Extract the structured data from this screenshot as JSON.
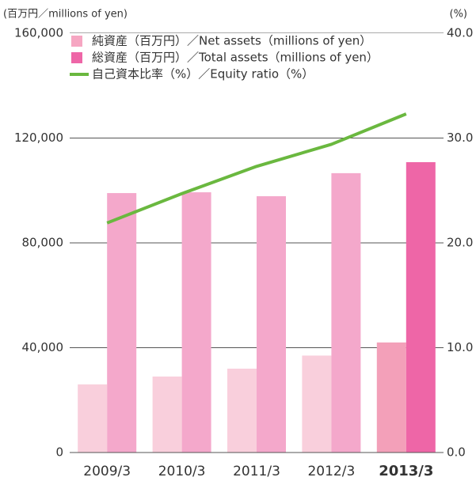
{
  "chart_data": {
    "type": "bar_line",
    "y_label": "(百万円／millions of yen)",
    "y2_label": "(%)",
    "categories": [
      "2009/3",
      "2010/3",
      "2011/3",
      "2012/3",
      "2013/3"
    ],
    "highlight_index": 4,
    "series": [
      {
        "name": "純資産（百万円）／Net assets（millions of yen）",
        "color": "#f6a6c2",
        "bar_colors": [
          "#f9cfdc",
          "#f9cfdc",
          "#f9cfdc",
          "#f9cfdc",
          "#f3a0b9"
        ],
        "values": [
          26000,
          29000,
          32000,
          37000,
          42000
        ]
      },
      {
        "name": "総資産（百万円）／Total assets（millions of yen）",
        "color": "#ee66a7",
        "bar_colors": [
          "#f4a8cb",
          "#f4a8cb",
          "#f4a8cb",
          "#f4a8cb",
          "#ee66a7"
        ],
        "values": [
          99000,
          99300,
          97800,
          106600,
          110800
        ]
      },
      {
        "name": "自己資本比率（%）／Equity ratio（%）",
        "color": "#6ab83f",
        "axis": "y2",
        "kind": "line",
        "values": [
          21.9,
          24.7,
          27.3,
          29.4,
          32.3
        ]
      }
    ],
    "ylim": [
      0,
      160000
    ],
    "yticks": [
      0,
      {
        "value": 40000,
        "label": "40,000"
      },
      {
        "value": 80000,
        "label": "80,000"
      },
      {
        "value": 120000,
        "label": "120,000"
      },
      {
        "value": 160000,
        "label": "160,000"
      }
    ],
    "y2lim": [
      0,
      40
    ],
    "y2ticks": [
      {
        "value": 0,
        "label": "0.0"
      },
      {
        "value": 10,
        "label": "10.0"
      },
      {
        "value": 20,
        "label": "20.0"
      },
      {
        "value": 30,
        "label": "30.0"
      },
      {
        "value": 40,
        "label": "40.0"
      }
    ],
    "grid": true
  }
}
